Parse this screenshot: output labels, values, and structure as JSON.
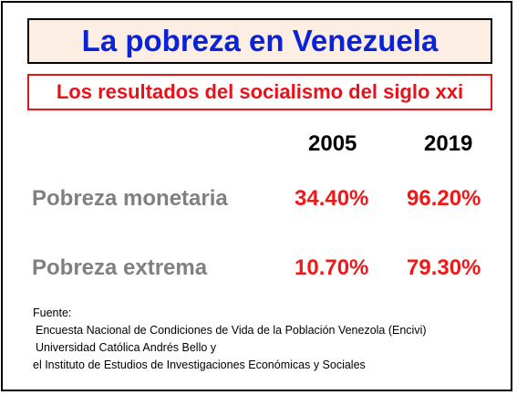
{
  "title": "La pobreza en Venezuela",
  "subtitle": "Los resultados del socialismo del siglo xxi",
  "years": [
    "2005",
    "2019"
  ],
  "rows": [
    {
      "label": "Pobreza monetaria",
      "values": [
        "34.40%",
        "96.20%"
      ]
    },
    {
      "label": "Pobreza extrema",
      "values": [
        "10.70%",
        "79.30%"
      ]
    }
  ],
  "source": {
    "heading": "Fuente:",
    "lines": [
      "Encuesta Nacional de Condiciones de Vida de la Población Venezola (Encivi)",
      "Universidad Católica Andrés Bello y",
      "el Instituto de Estudios de Investigaciones Económicas y Sociales"
    ]
  },
  "colors": {
    "title": "#0a23d8",
    "title_background": "#fdeee3",
    "subtitle": "#e8121b",
    "label": "#808080",
    "value": "#f01818"
  }
}
